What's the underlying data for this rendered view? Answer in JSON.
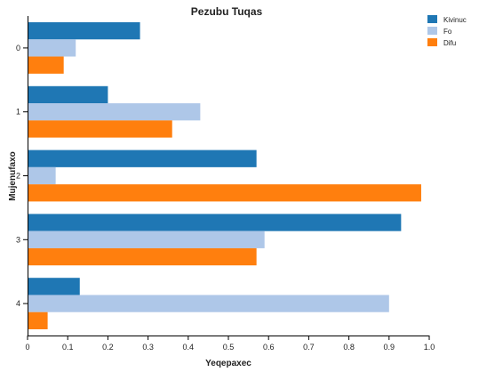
{
  "chart_data": {
    "type": "bar",
    "orientation": "horizontal",
    "title": "Pezubu Tuqas",
    "xlabel": "Yeqepaxec",
    "ylabel": "Mujenufaxo",
    "categories": [
      "0",
      "1",
      "2",
      "3",
      "4"
    ],
    "x_ticks": [
      "0",
      "0.1",
      "0.2",
      "0.3",
      "0.4",
      "0.5",
      "0.6",
      "0.7",
      "0.8",
      "0.9",
      "1.0"
    ],
    "xlim": [
      0,
      1.0
    ],
    "grid": false,
    "legend_position": "top-right",
    "series": [
      {
        "name": "Kivinuc",
        "color": "#1f77b4",
        "values": [
          0.28,
          0.2,
          0.57,
          0.93,
          0.13
        ]
      },
      {
        "name": "Fo",
        "color": "#aec7e8",
        "values": [
          0.12,
          0.43,
          0.07,
          0.59,
          0.9
        ]
      },
      {
        "name": "Difu",
        "color": "#ff7f0e",
        "values": [
          0.09,
          0.36,
          0.98,
          0.57,
          0.05
        ]
      }
    ]
  }
}
